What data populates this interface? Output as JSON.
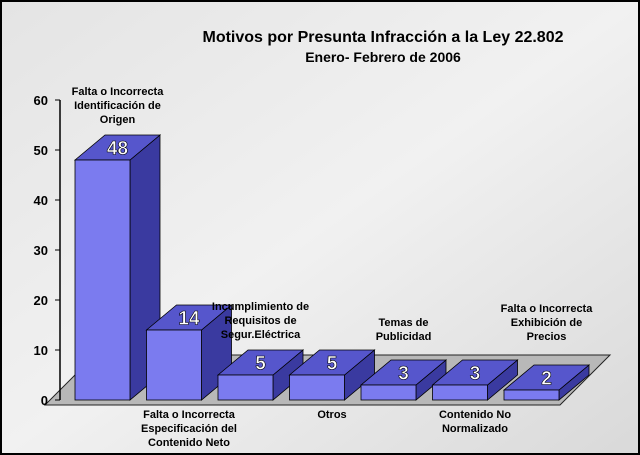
{
  "chart_data": {
    "type": "bar3d",
    "title": "Motivos por Presunta Infracción a la Ley 22.802",
    "subtitle": "Enero- Febrero de  2006",
    "categories": [
      "Falta o Incorrecta\nIdentificación de\nOrigen",
      "Falta o Incorrecta\nEspecificación del\nContenido Neto",
      "Incumplimiento de\nRequisitos de\nSegur.Eléctrica",
      "Otros",
      "Temas de\nPublicidad",
      "Contenido No\nNormalizado",
      "Falta o Incorrecta\nExhibición de\nPrecios"
    ],
    "values": [
      48,
      14,
      5,
      5,
      3,
      3,
      2
    ],
    "color": "#7b7bef",
    "ylim": [
      0,
      60
    ],
    "yticks": [
      0,
      10,
      20,
      30,
      40,
      50,
      60
    ]
  }
}
